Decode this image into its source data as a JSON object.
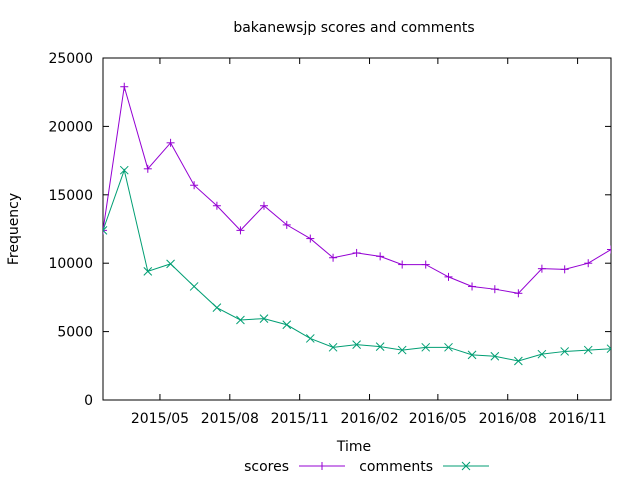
{
  "chart_data": {
    "type": "line",
    "title": "bakanewsjp scores and comments",
    "xlabel": "Time",
    "ylabel": "Frequency",
    "xlim": [
      "2015-02-15",
      "2016-12-15"
    ],
    "ylim": [
      0,
      25000
    ],
    "yticks": [
      0,
      5000,
      10000,
      15000,
      20000,
      25000
    ],
    "xticks": [
      {
        "date": "2015-05-01",
        "label": "2015/05"
      },
      {
        "date": "2015-08-01",
        "label": "2015/08"
      },
      {
        "date": "2015-11-01",
        "label": "2015/11"
      },
      {
        "date": "2016-02-01",
        "label": "2016/02"
      },
      {
        "date": "2016-05-01",
        "label": "2016/05"
      },
      {
        "date": "2016-08-01",
        "label": "2016/08"
      },
      {
        "date": "2016-11-01",
        "label": "2016/11"
      }
    ],
    "x": [
      "2015-02-15",
      "2015-03-15",
      "2015-04-15",
      "2015-05-15",
      "2015-06-15",
      "2015-07-15",
      "2015-08-15",
      "2015-09-15",
      "2015-10-15",
      "2015-11-15",
      "2015-12-15",
      "2016-01-15",
      "2016-02-15",
      "2016-03-15",
      "2016-04-15",
      "2016-05-15",
      "2016-06-15",
      "2016-07-15",
      "2016-08-15",
      "2016-09-15",
      "2016-10-15",
      "2016-11-15",
      "2016-12-15"
    ],
    "series": [
      {
        "name": "scores",
        "color": "#9400d3",
        "marker": "plus",
        "values": [
          12400,
          22900,
          16900,
          18800,
          15700,
          14200,
          12400,
          14200,
          12800,
          11800,
          10400,
          10750,
          10500,
          9900,
          9900,
          9000,
          8300,
          8100,
          7800,
          9600,
          9550,
          10000,
          11000
        ]
      },
      {
        "name": "comments",
        "color": "#009e73",
        "marker": "cross",
        "values": [
          12400,
          16800,
          9400,
          9950,
          8300,
          6750,
          5850,
          5950,
          5500,
          4500,
          3850,
          4050,
          3900,
          3650,
          3850,
          3850,
          3300,
          3200,
          2850,
          3350,
          3550,
          3650,
          3750
        ]
      }
    ],
    "grid": false,
    "legend_position": "bottom-center"
  }
}
